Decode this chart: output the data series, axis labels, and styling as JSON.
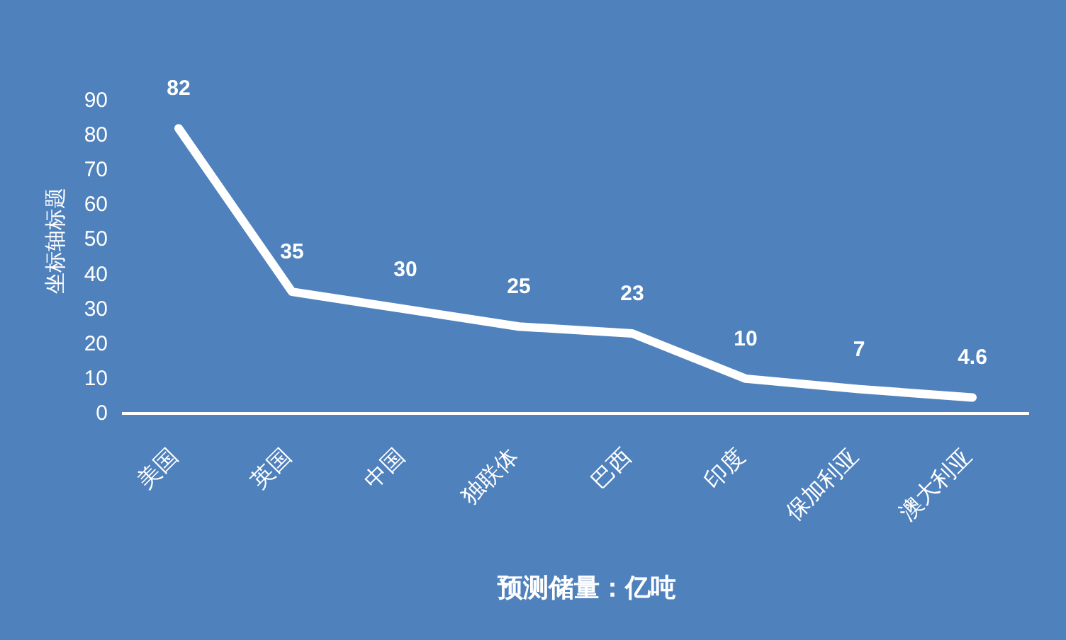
{
  "chart_data": {
    "type": "line",
    "xlabel": "预测储量：亿吨",
    "ylabel": "坐标轴标题",
    "categories": [
      "美国",
      "英国",
      "中国",
      "独联体",
      "巴西",
      "印度",
      "保加利亚",
      "澳大利亚"
    ],
    "series": [
      {
        "color": "#ffffff",
        "values": [
          82,
          35,
          30,
          25,
          23,
          10,
          7,
          4.6
        ]
      }
    ],
    "ylim": [
      0,
      90
    ],
    "yticks": [
      0,
      10,
      20,
      30,
      40,
      50,
      60,
      70,
      80,
      90
    ],
    "data_labels": true,
    "grid": false,
    "marker": "none",
    "line_style": "solid"
  }
}
